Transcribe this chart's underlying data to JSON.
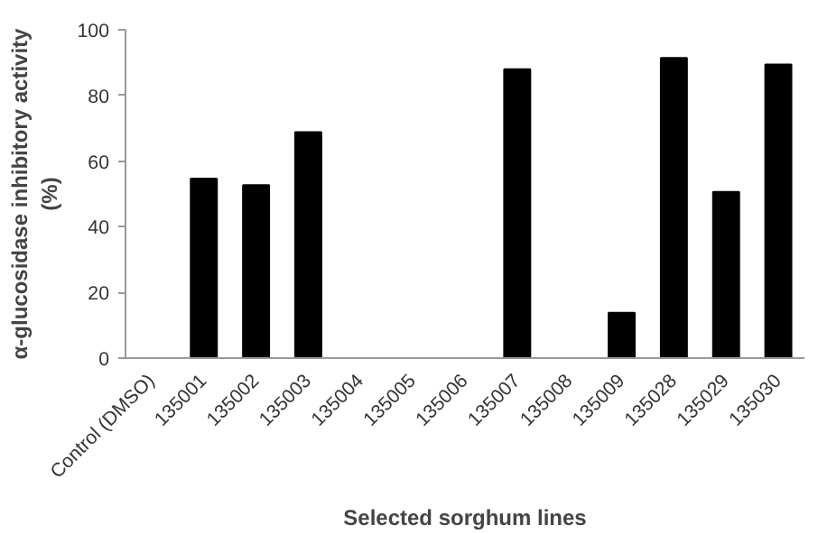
{
  "chart_data": {
    "type": "bar",
    "xlabel": "Selected sorghum lines",
    "ylabel": "α-glucosidase inhibitory activity\n(%)",
    "categories": [
      "Control (DMSO)",
      "135001",
      "135002",
      "135003",
      "135004",
      "135005",
      "135006",
      "135007",
      "135008",
      "135009",
      "135028",
      "135029",
      "135030"
    ],
    "values": [
      0,
      54.7,
      52.7,
      68.8,
      0,
      0,
      0,
      88,
      0,
      13.8,
      91.4,
      50.6,
      89.4
    ],
    "color": "#000000",
    "ylim": [
      0,
      100
    ],
    "yticks": [
      0,
      20,
      40,
      60,
      80,
      100
    ],
    "grid": false
  }
}
